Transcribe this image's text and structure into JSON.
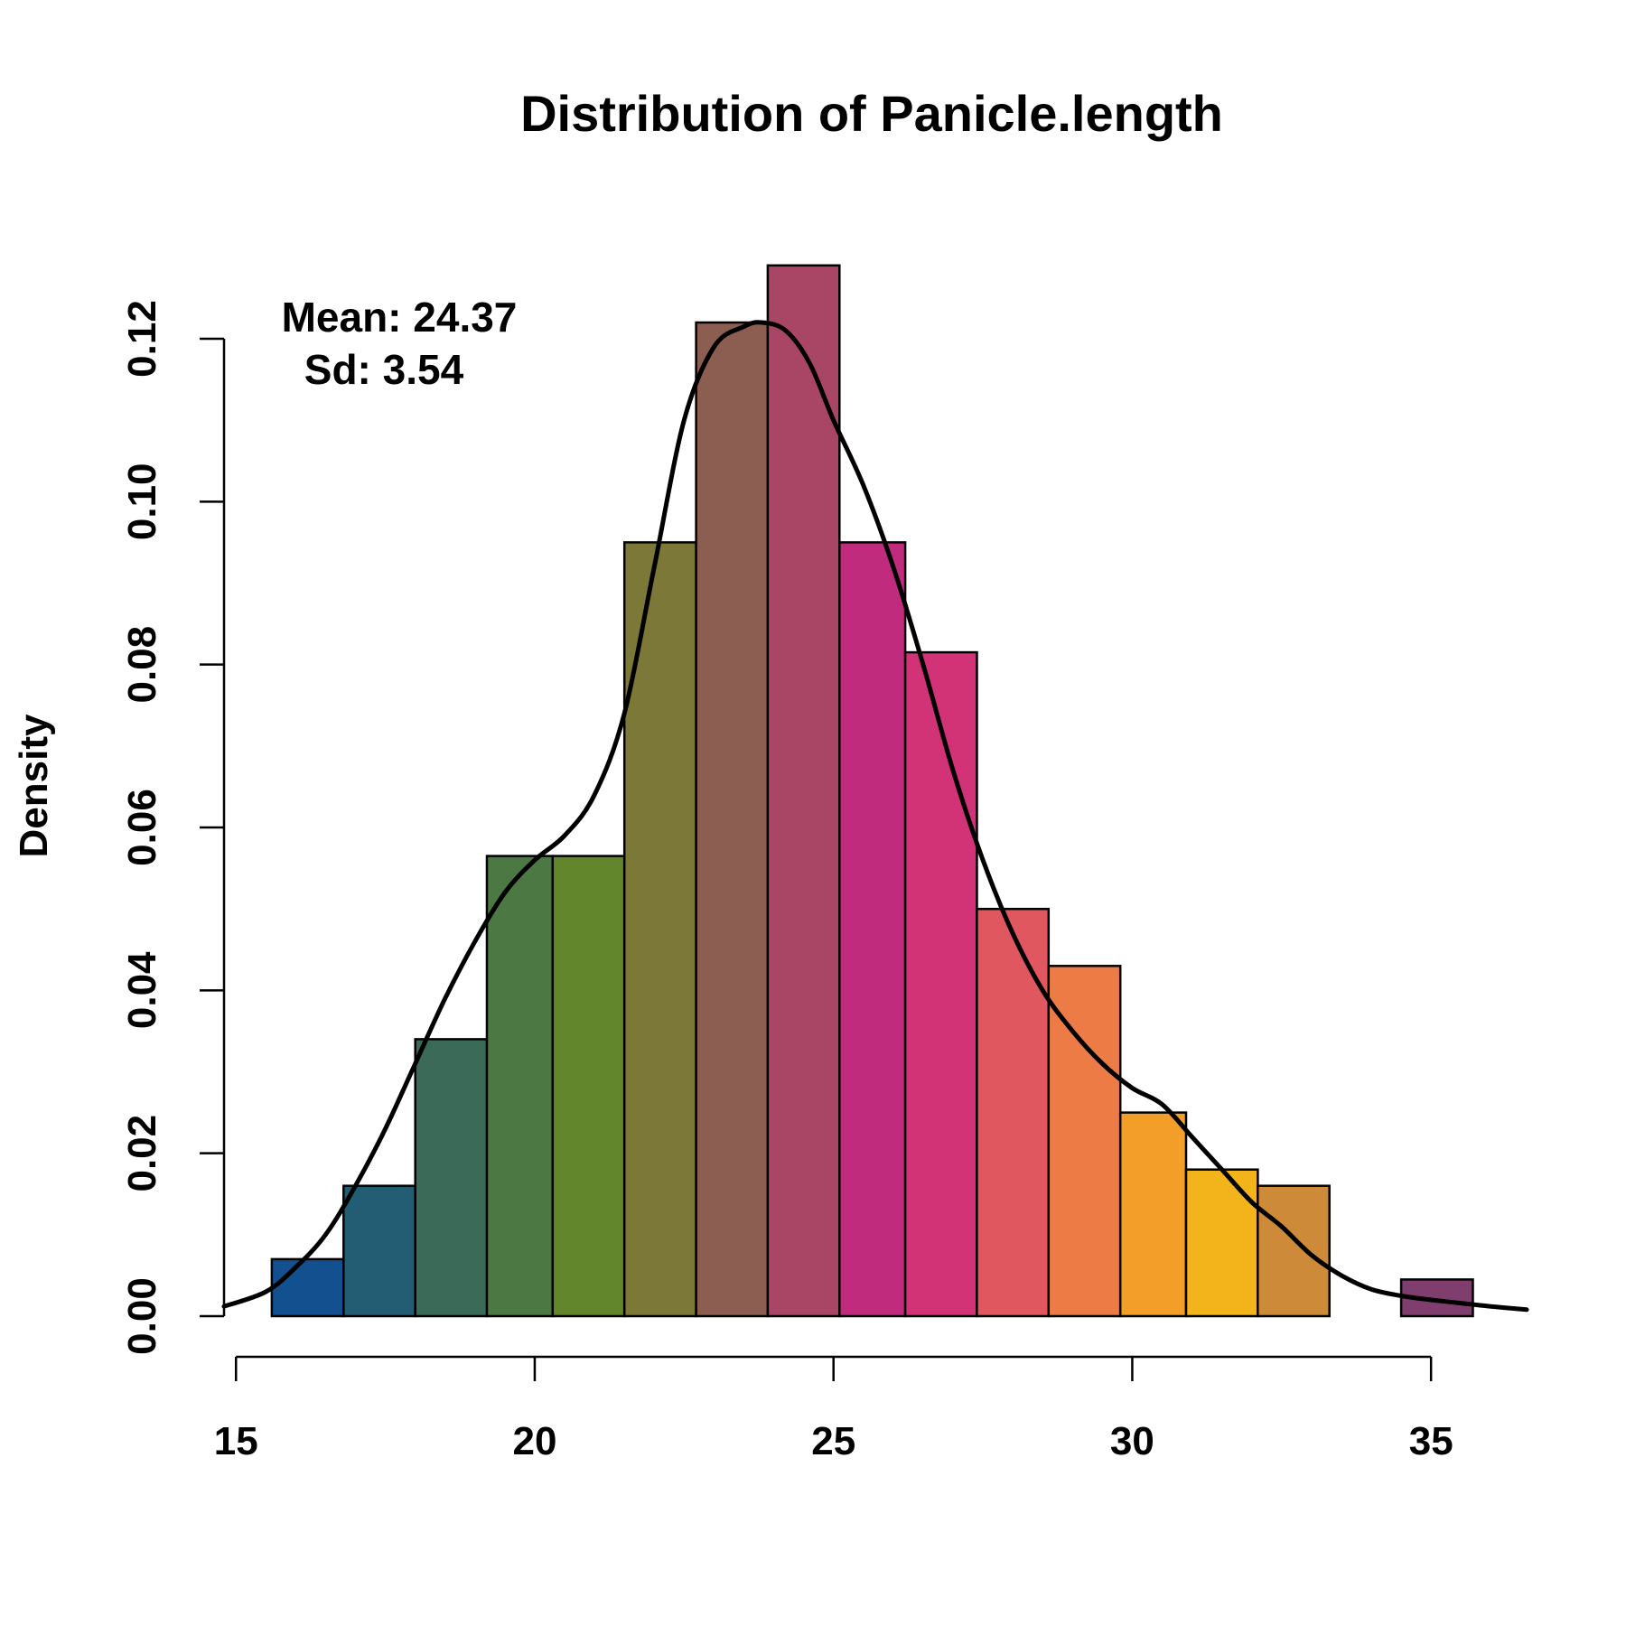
{
  "chart_data": {
    "type": "bar",
    "title": "Distribution of Panicle.length",
    "xlabel": "",
    "ylabel": "Density",
    "xlim": [
      14.8,
      36.6
    ],
    "ylim": [
      0,
      0.13
    ],
    "x_ticks": [
      15,
      20,
      25,
      30,
      35
    ],
    "y_ticks": [
      0.0,
      0.02,
      0.04,
      0.06,
      0.08,
      0.1,
      0.12
    ],
    "y_tick_labels": [
      "0.00",
      "0.02",
      "0.04",
      "0.06",
      "0.08",
      "0.10",
      "0.12"
    ],
    "annotations": [
      "Mean: 24.37",
      "Sd: 3.54"
    ],
    "bins": [
      {
        "start": 15.6,
        "end": 16.8,
        "density": 0.007,
        "color": "#12508f"
      },
      {
        "start": 16.8,
        "end": 18.0,
        "density": 0.016,
        "color": "#235d73"
      },
      {
        "start": 18.0,
        "end": 19.2,
        "density": 0.034,
        "color": "#3b6a59"
      },
      {
        "start": 19.2,
        "end": 20.3,
        "density": 0.0565,
        "color": "#4c7843"
      },
      {
        "start": 20.3,
        "end": 21.5,
        "density": 0.0565,
        "color": "#61862b"
      },
      {
        "start": 21.5,
        "end": 22.7,
        "density": 0.095,
        "color": "#7b7838"
      },
      {
        "start": 22.7,
        "end": 23.9,
        "density": 0.122,
        "color": "#8c5e51"
      },
      {
        "start": 23.9,
        "end": 25.1,
        "density": 0.129,
        "color": "#a94666"
      },
      {
        "start": 25.1,
        "end": 26.2,
        "density": 0.095,
        "color": "#c02b7e"
      },
      {
        "start": 26.2,
        "end": 27.4,
        "density": 0.0815,
        "color": "#d23376"
      },
      {
        "start": 27.4,
        "end": 28.6,
        "density": 0.05,
        "color": "#e05760"
      },
      {
        "start": 28.6,
        "end": 29.8,
        "density": 0.043,
        "color": "#ec7b45"
      },
      {
        "start": 29.8,
        "end": 30.9,
        "density": 0.025,
        "color": "#f49e2a"
      },
      {
        "start": 30.9,
        "end": 32.1,
        "density": 0.018,
        "color": "#f2b41a"
      },
      {
        "start": 32.1,
        "end": 33.3,
        "density": 0.016,
        "color": "#cd8a38"
      },
      {
        "start": 34.5,
        "end": 35.7,
        "density": 0.0045,
        "color": "#7f3e6d"
      }
    ],
    "density_curve": {
      "x": [
        14.8,
        15.5,
        16.0,
        16.5,
        17.0,
        17.5,
        18.0,
        18.5,
        19.0,
        19.5,
        20.0,
        20.5,
        21.0,
        21.5,
        22.0,
        22.5,
        23.0,
        23.5,
        23.8,
        24.2,
        24.6,
        25.0,
        25.5,
        26.0,
        26.5,
        27.0,
        27.5,
        28.0,
        28.5,
        29.0,
        29.5,
        30.0,
        30.5,
        31.0,
        31.5,
        32.0,
        32.5,
        33.0,
        33.5,
        34.0,
        34.5,
        35.0,
        35.5,
        36.0,
        36.6
      ],
      "y": [
        0.0012,
        0.003,
        0.006,
        0.01,
        0.016,
        0.023,
        0.031,
        0.039,
        0.046,
        0.052,
        0.056,
        0.059,
        0.064,
        0.074,
        0.092,
        0.11,
        0.119,
        0.1215,
        0.122,
        0.121,
        0.117,
        0.11,
        0.102,
        0.092,
        0.08,
        0.067,
        0.056,
        0.047,
        0.04,
        0.035,
        0.031,
        0.028,
        0.026,
        0.022,
        0.018,
        0.014,
        0.011,
        0.0075,
        0.005,
        0.0033,
        0.0025,
        0.002,
        0.0016,
        0.0012,
        0.0008
      ]
    }
  }
}
